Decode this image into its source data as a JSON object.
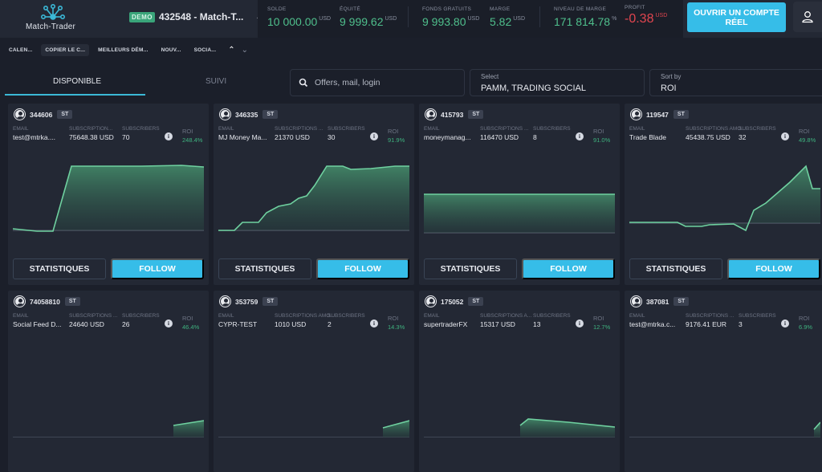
{
  "header": {
    "logo_text": "Match-Trader",
    "account_badge": "DEMO",
    "account_label": "432548 - Match-T...",
    "stats": [
      {
        "label": "SOLDE",
        "value": "10 000.00",
        "unit": "USD"
      },
      {
        "label": "ÉQUITÉ",
        "value": "9 999.62",
        "unit": "USD"
      },
      {
        "label": "FONDS GRATUITS",
        "value": "9 993.80",
        "unit": "USD"
      },
      {
        "label": "MARGE",
        "value": "5.82",
        "unit": "USD"
      },
      {
        "label": "NIVEAU DE MARGE",
        "value": "171 814.78",
        "unit": "%"
      },
      {
        "label": "PROFIT",
        "value": "-0.38",
        "unit": "USD"
      }
    ],
    "cta_label": "OUVRIR UN COMPTE RÉEL"
  },
  "nav": {
    "items": [
      "CALEN...",
      "COPIER LE C...",
      "MEILLEURS DÉM...",
      "NOUV...",
      "SOCIA..."
    ],
    "active_index": 1
  },
  "tabs": {
    "available": "DISPONIBLE",
    "following": "SUIVI"
  },
  "filters": {
    "search_placeholder": "Offers, mail, login",
    "select_label": "Select",
    "select_value": "PAMM, TRADING SOCIAL",
    "sort_label": "Sort by",
    "sort_value": "ROI"
  },
  "labels": {
    "email": "EMAIL",
    "subscribers": "SUBSCRIBERS",
    "roi": "ROI",
    "statistics": "STATISTIQUES",
    "follow": "FOLLOW",
    "badge": "ST"
  },
  "cards": [
    {
      "id": "344606",
      "email": "test@mtrka....",
      "sub_label": "SUBSCRIPTION...",
      "sub_amount": "75648.38 USD",
      "subscribers": "70",
      "roi": "248.4%"
    },
    {
      "id": "346335",
      "email": "MJ Money Ma...",
      "sub_label": "SUBSCRIPTIONS ...",
      "sub_amount": "21370 USD",
      "subscribers": "30",
      "roi": "91.9%"
    },
    {
      "id": "415793",
      "email": "moneymanag...",
      "sub_label": "SUBSCRIPTIONS ...",
      "sub_amount": "116470 USD",
      "subscribers": "8",
      "roi": "91.0%"
    },
    {
      "id": "119547",
      "email": "Trade Blade",
      "sub_label": "SUBSCRIPTIONS AMO...",
      "sub_amount": "45438.75 USD",
      "subscribers": "32",
      "roi": "49.8%"
    },
    {
      "id": "74058810",
      "email": "Social Feed D...",
      "sub_label": "SUBSCRIPTIONS ...",
      "sub_amount": "24640 USD",
      "subscribers": "26",
      "roi": "46.4%"
    },
    {
      "id": "353759",
      "email": "CYPR-TEST",
      "sub_label": "SUBSCRIPTIONS AMO...",
      "sub_amount": "1010 USD",
      "subscribers": "2",
      "roi": "14.3%"
    },
    {
      "id": "175052",
      "email": "supertraderFX",
      "sub_label": "SUBSCRIPTIONS A...",
      "sub_amount": "15317 USD",
      "subscribers": "13",
      "roi": "12.7%"
    },
    {
      "id": "387081",
      "email": "test@mtrka.c...",
      "sub_label": "SUBSCRIPTIONS ...",
      "sub_amount": "9176.41 EUR",
      "subscribers": "3",
      "roi": "6.9%"
    }
  ],
  "colors": {
    "accent": "#36bde8",
    "positive": "#4fbf8c",
    "negative": "#e0454f",
    "chart_line": "#5fc694"
  }
}
